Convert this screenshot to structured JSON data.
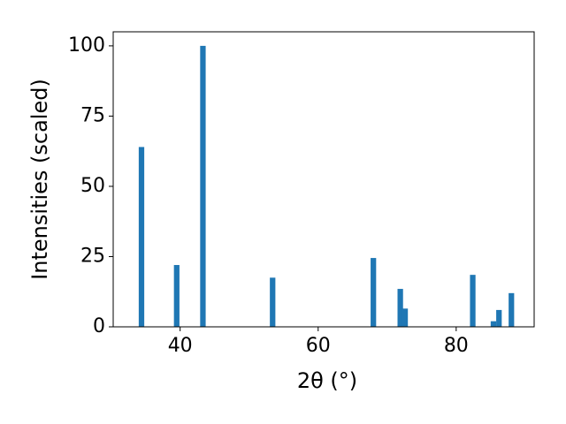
{
  "chart_data": {
    "type": "bar",
    "x": [
      34.4,
      39.5,
      43.3,
      53.4,
      68.0,
      71.9,
      72.6,
      82.4,
      85.4,
      86.2,
      88.0
    ],
    "values": [
      64,
      22,
      100,
      17.5,
      24.5,
      13.5,
      6.5,
      18.5,
      2,
      6,
      12
    ],
    "color": "#1f77b4",
    "xlabel": "2θ (°)",
    "ylabel": "Intensities (scaled)",
    "xlim": [
      30.3,
      91.3
    ],
    "xticks": [
      40,
      60,
      80
    ],
    "ylim": [
      0,
      105
    ],
    "yticks": [
      0,
      25,
      50,
      75,
      100
    ]
  }
}
